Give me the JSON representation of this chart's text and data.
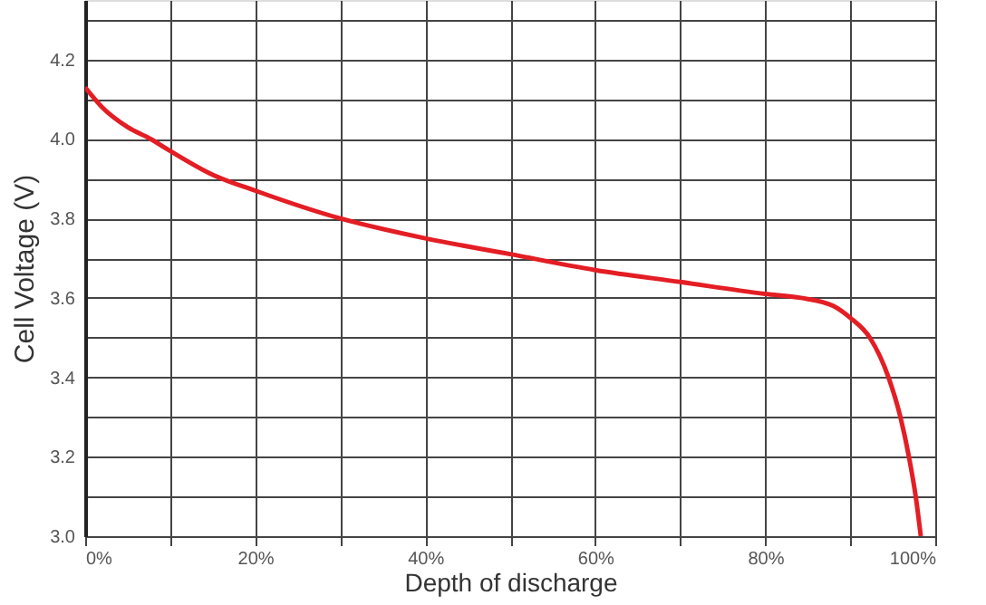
{
  "chart_data": {
    "type": "line",
    "xlabel": "Depth of discharge",
    "ylabel": "Cell Voltage (V)",
    "xlim": [
      0,
      100
    ],
    "ylim": [
      3.0,
      4.35
    ],
    "xticks": [
      {
        "value": 0,
        "label": "0%"
      },
      {
        "value": 10,
        "label": null
      },
      {
        "value": 20,
        "label": "20%"
      },
      {
        "value": 30,
        "label": null
      },
      {
        "value": 40,
        "label": "40%"
      },
      {
        "value": 50,
        "label": null
      },
      {
        "value": 60,
        "label": "60%"
      },
      {
        "value": 70,
        "label": null
      },
      {
        "value": 80,
        "label": "80%"
      },
      {
        "value": 90,
        "label": null
      },
      {
        "value": 100,
        "label": "100%"
      }
    ],
    "yticks": [
      {
        "value": 3.0,
        "label": "3.0"
      },
      {
        "value": 3.1,
        "label": null
      },
      {
        "value": 3.2,
        "label": "3.2"
      },
      {
        "value": 3.3,
        "label": null
      },
      {
        "value": 3.4,
        "label": "3.4"
      },
      {
        "value": 3.5,
        "label": null
      },
      {
        "value": 3.6,
        "label": "3.6"
      },
      {
        "value": 3.7,
        "label": null
      },
      {
        "value": 3.8,
        "label": "3.8"
      },
      {
        "value": 3.9,
        "label": null
      },
      {
        "value": 4.0,
        "label": "4.0"
      },
      {
        "value": 4.1,
        "label": null
      },
      {
        "value": 4.2,
        "label": "4.2"
      },
      {
        "value": 4.3,
        "label": null
      }
    ],
    "grid": true,
    "marker": "none",
    "line_style": "solid",
    "series": [
      {
        "color": "#e31e24",
        "x": [
          0,
          2,
          5,
          7.7,
          10,
          15,
          20,
          30,
          40,
          50,
          60,
          70,
          80,
          84.2,
          88,
          90,
          92.3,
          94.5,
          95.9,
          96.9,
          97.7,
          98.3
        ],
        "values": [
          4.13,
          4.08,
          4.03,
          4.0,
          3.97,
          3.91,
          3.87,
          3.8,
          3.75,
          3.71,
          3.67,
          3.64,
          3.61,
          3.6,
          3.58,
          3.55,
          3.5,
          3.4,
          3.3,
          3.2,
          3.1,
          3.0
        ]
      }
    ]
  }
}
